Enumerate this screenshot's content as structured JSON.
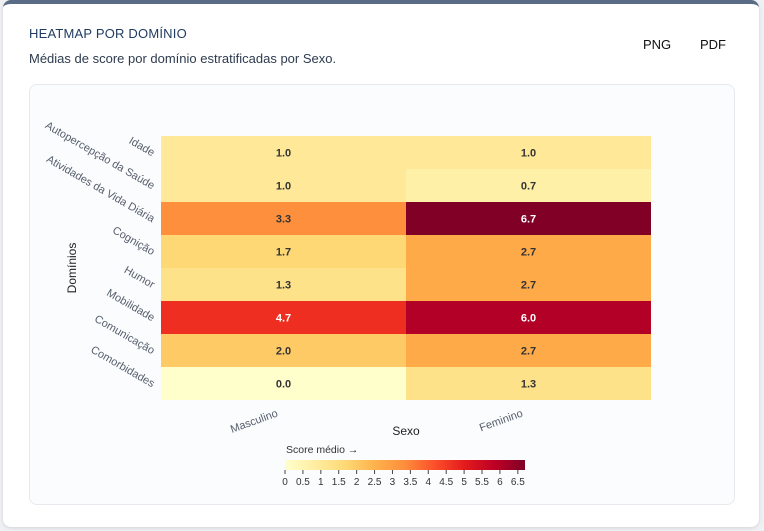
{
  "panel": {
    "title": "HEATMAP POR DOMÍNIO",
    "subtitle": "Médias de score por domínio estratificadas por Sexo.",
    "png_label": "PNG",
    "pdf_label": "PDF"
  },
  "chart_data": {
    "type": "heatmap",
    "title": "",
    "xlabel": "Sexo",
    "ylabel": "Domínios",
    "x_categories": [
      "Masculino",
      "Feminino"
    ],
    "y_categories": [
      "Idade",
      "Autopercepção da Saúde",
      "Atividades da Vida Diária",
      "Cognição",
      "Humor",
      "Mobilidade",
      "Comunicação",
      "Comorbidades"
    ],
    "values": [
      [
        1.0,
        1.0
      ],
      [
        1.0,
        0.7
      ],
      [
        3.3,
        6.7
      ],
      [
        1.7,
        2.7
      ],
      [
        1.3,
        2.7
      ],
      [
        4.7,
        6.0
      ],
      [
        2.0,
        2.7
      ],
      [
        0.0,
        1.3
      ]
    ],
    "value_labels": [
      [
        "1.0",
        "1.0"
      ],
      [
        "1.0",
        "0.7"
      ],
      [
        "3.3",
        "6.7"
      ],
      [
        "1.7",
        "2.7"
      ],
      [
        "1.3",
        "2.7"
      ],
      [
        "4.7",
        "6.0"
      ],
      [
        "2.0",
        "2.7"
      ],
      [
        "0.0",
        "1.3"
      ]
    ],
    "colorbar": {
      "title": "Score médio →",
      "min": 0,
      "max": 6.7,
      "ticks": [
        "0",
        "0.5",
        "1",
        "1.5",
        "2",
        "2.5",
        "3",
        "3.5",
        "4",
        "4.5",
        "5",
        "5.5",
        "6",
        "6.5"
      ],
      "orientation": "horizontal",
      "colors": [
        "#ffffcc",
        "#ffeda0",
        "#fed976",
        "#feb24c",
        "#fd8d3c",
        "#fc4e2a",
        "#e31a1c",
        "#bd0026",
        "#800026"
      ]
    }
  }
}
